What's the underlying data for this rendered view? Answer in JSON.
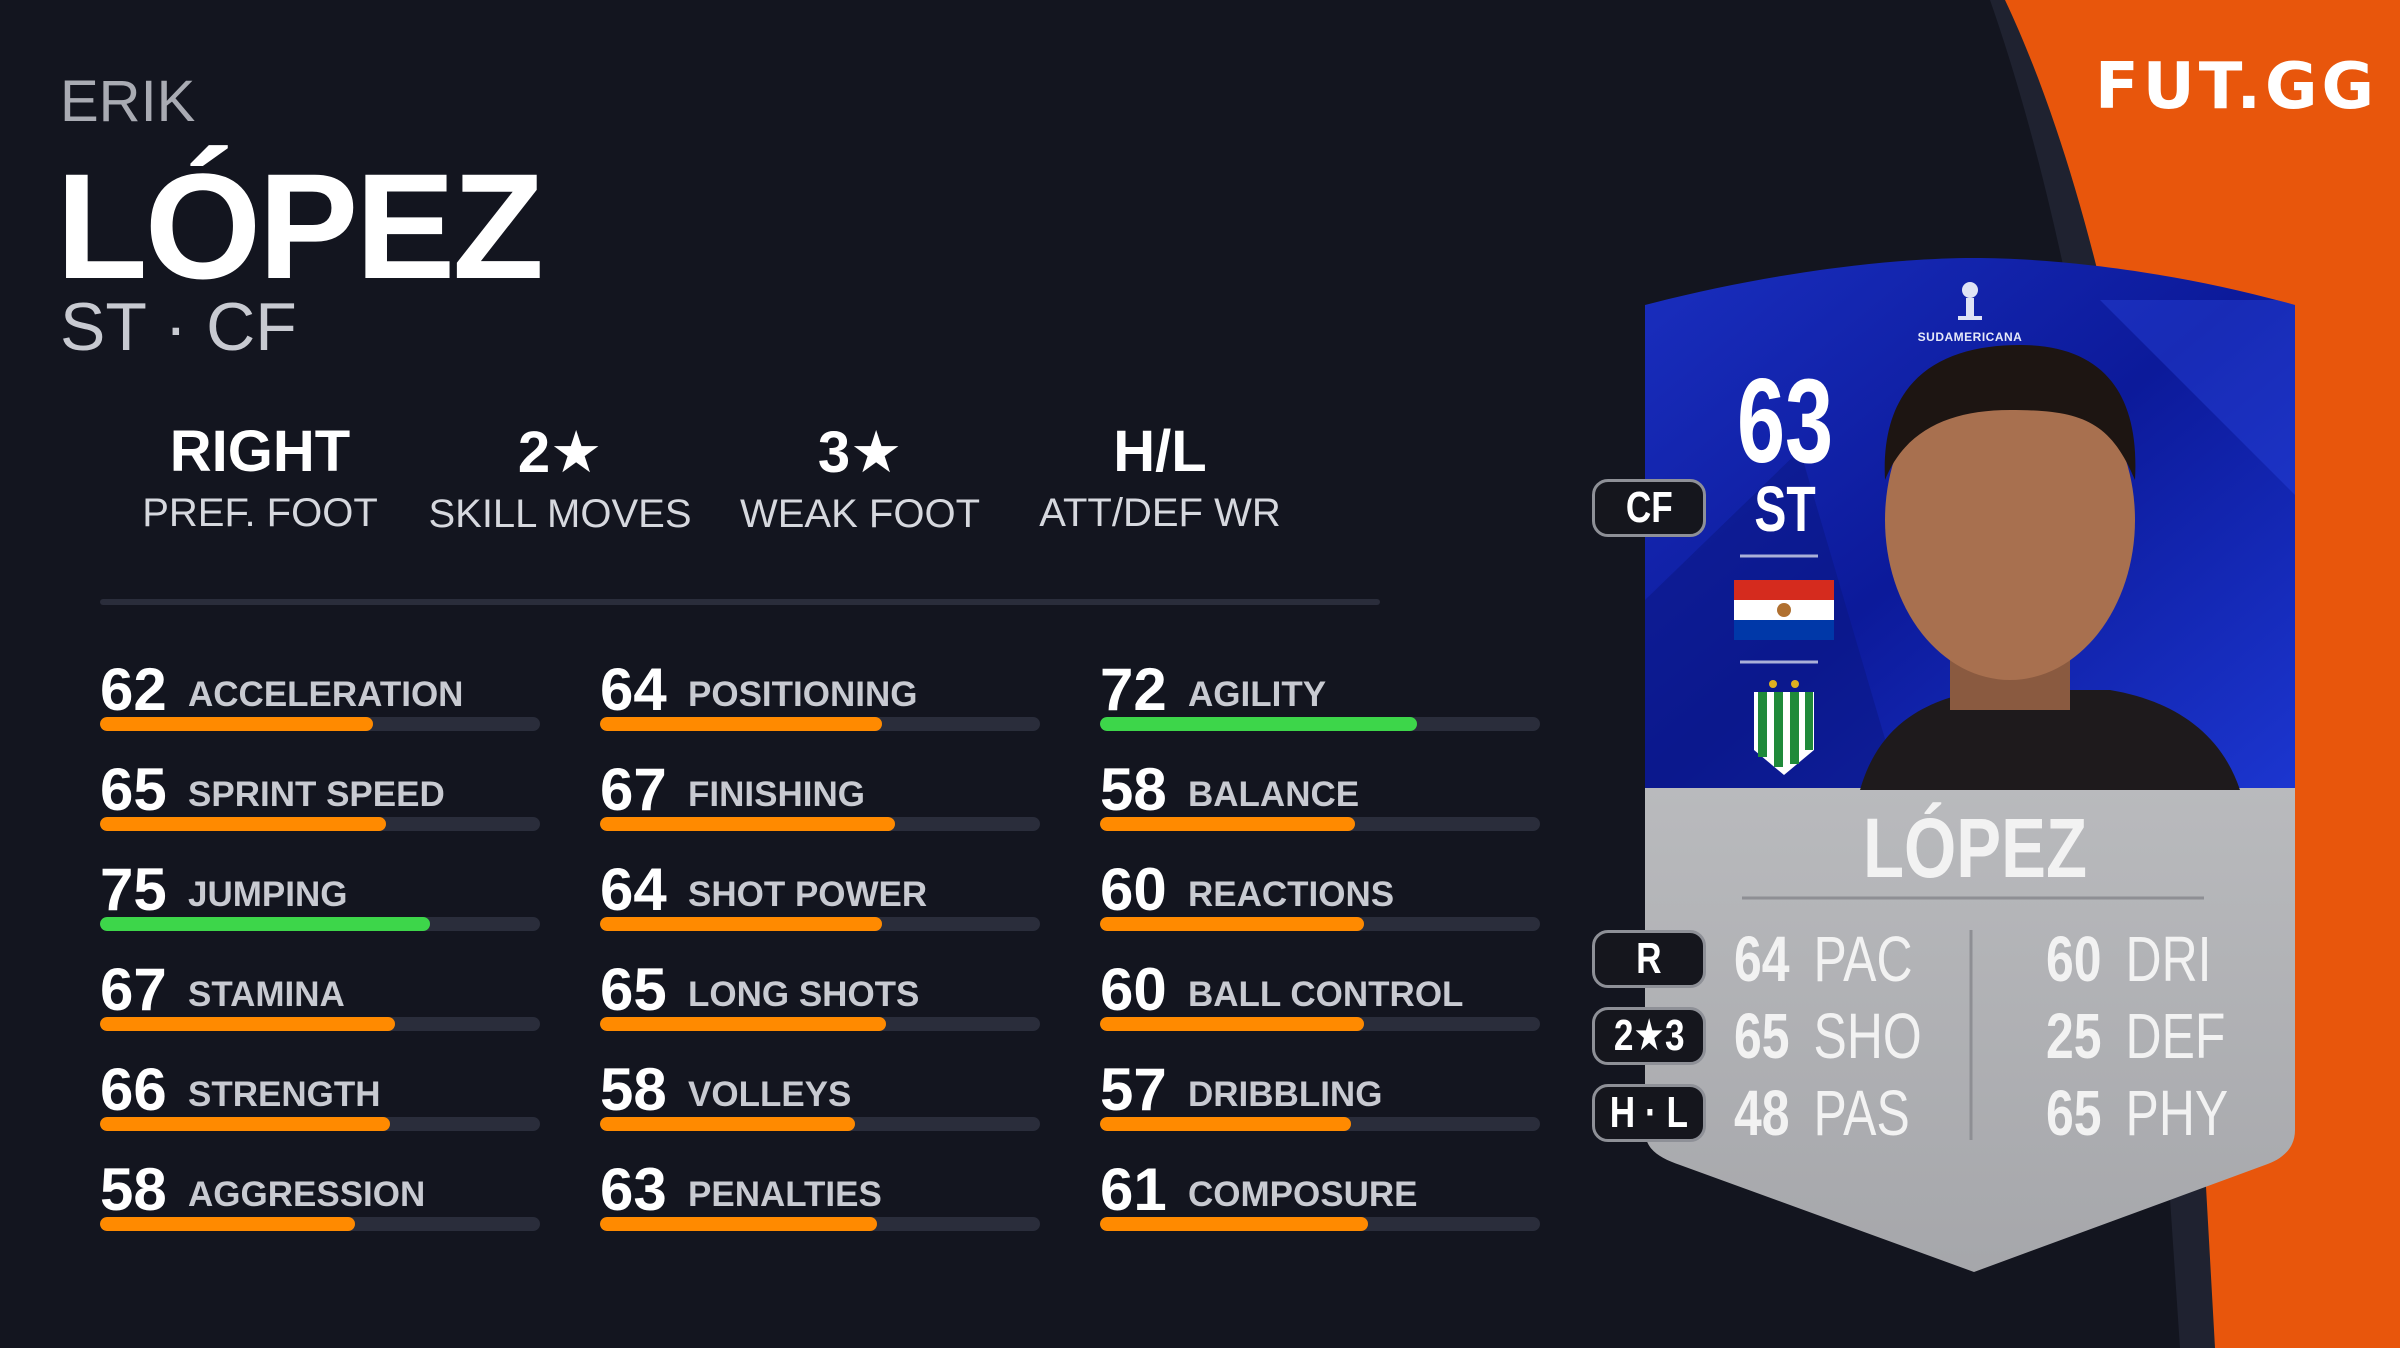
{
  "brand": {
    "logo": "FUT.GG",
    "accent": "#e8560c"
  },
  "player": {
    "first_name": "ERIK",
    "last_name": "LÓPEZ",
    "positions": "ST · CF"
  },
  "info": [
    {
      "value": "RIGHT",
      "label": "PREF. FOOT"
    },
    {
      "value": "2★",
      "label": "SKILL MOVES"
    },
    {
      "value": "3★",
      "label": "WEAK FOOT"
    },
    {
      "value": "H/L",
      "label": "ATT/DEF WR"
    }
  ],
  "stats": [
    [
      {
        "value": 62,
        "label": "ACCELERATION"
      },
      {
        "value": 65,
        "label": "SPRINT SPEED"
      },
      {
        "value": 75,
        "label": "JUMPING"
      },
      {
        "value": 67,
        "label": "STAMINA"
      },
      {
        "value": 66,
        "label": "STRENGTH"
      },
      {
        "value": 58,
        "label": "AGGRESSION"
      }
    ],
    [
      {
        "value": 64,
        "label": "POSITIONING"
      },
      {
        "value": 67,
        "label": "FINISHING"
      },
      {
        "value": 64,
        "label": "SHOT POWER"
      },
      {
        "value": 65,
        "label": "LONG SHOTS"
      },
      {
        "value": 58,
        "label": "VOLLEYS"
      },
      {
        "value": 63,
        "label": "PENALTIES"
      }
    ],
    [
      {
        "value": 72,
        "label": "AGILITY"
      },
      {
        "value": 58,
        "label": "BALANCE"
      },
      {
        "value": 60,
        "label": "REACTIONS"
      },
      {
        "value": 60,
        "label": "BALL CONTROL"
      },
      {
        "value": 57,
        "label": "DRIBBLING"
      },
      {
        "value": 61,
        "label": "COMPOSURE"
      }
    ]
  ],
  "bar_colors": {
    "normal": "#ff8a00",
    "high": "#3dd64a",
    "track": "#2a2d3b"
  },
  "card": {
    "rating": "63",
    "position": "ST",
    "alt_position": "CF",
    "name": "LÓPEZ",
    "competition": "SUDAMERICANA",
    "pills": [
      "R",
      "2★3",
      "H · L"
    ],
    "left_stats": [
      {
        "value": "64",
        "label": "PAC"
      },
      {
        "value": "65",
        "label": "SHO"
      },
      {
        "value": "48",
        "label": "PAS"
      }
    ],
    "right_stats": [
      {
        "value": "60",
        "label": "DRI"
      },
      {
        "value": "25",
        "label": "DEF"
      },
      {
        "value": "65",
        "label": "PHY"
      }
    ],
    "nation": "paraguay-flag",
    "club": "banfield-crest"
  }
}
